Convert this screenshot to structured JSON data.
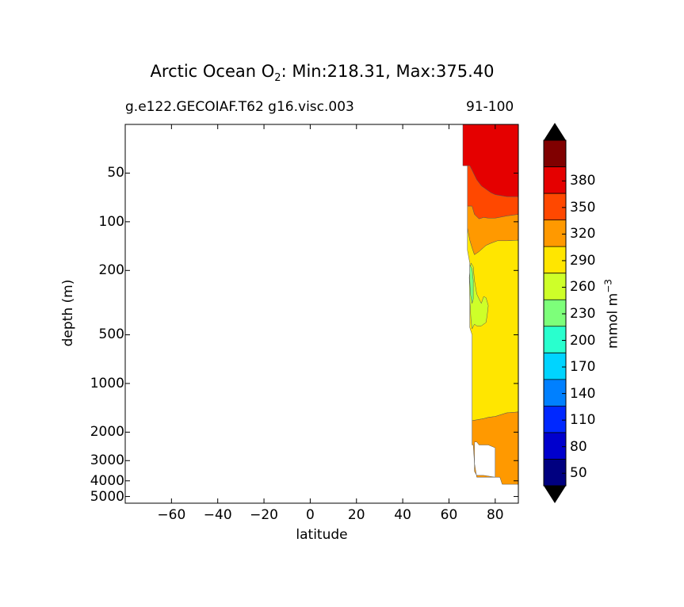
{
  "chart_data": {
    "type": "contour",
    "title": "Arctic Ocean O",
    "title_subscript": "2",
    "title_rest": ": Min:218.31, Max:375.40",
    "subtitle_left": "g.e122.GECOIAF.T62 g16.visc.003",
    "subtitle_right": "91-100",
    "xlabel": "latitude",
    "ylabel": "depth (m)",
    "colorbar_label": "mmol m",
    "colorbar_label_exp": "−3",
    "xlim": [
      -80,
      90
    ],
    "x_ticks": [
      -60,
      -40,
      -20,
      0,
      20,
      40,
      60,
      80
    ],
    "x_tick_labels": [
      "−60",
      "−40",
      "−20",
      "0",
      "20",
      "40",
      "60",
      "80"
    ],
    "y_scale": "log",
    "y_inverted": true,
    "ylim": [
      5500,
      25
    ],
    "y_ticks": [
      50,
      100,
      200,
      500,
      1000,
      2000,
      3000,
      4000,
      5000
    ],
    "y_tick_labels": [
      "50",
      "100",
      "200",
      "500",
      "1000",
      "2000",
      "3000",
      "4000",
      "5000"
    ],
    "min": 218.31,
    "max": 375.4,
    "levels": [
      35,
      50,
      65,
      80,
      95,
      110,
      125,
      140,
      155,
      170,
      185,
      200,
      215,
      230,
      245,
      260,
      275,
      290,
      305,
      320,
      335,
      350,
      365,
      380,
      395
    ],
    "colorbar_tick_labels": [
      "50",
      "80",
      "110",
      "140",
      "170",
      "200",
      "230",
      "260",
      "290",
      "320",
      "350",
      "380"
    ],
    "colorbar_colors": [
      "#000080",
      "#0000cd",
      "#0028ff",
      "#0080ff",
      "#00d4ff",
      "#29ffce",
      "#7dff7a",
      "#ceff29",
      "#ffe600",
      "#ff9900",
      "#ff4800",
      "#e50000",
      "#800000"
    ],
    "colorbar_extend": "both",
    "colorbar_over_color": "#000000",
    "colorbar_under_color": "#000000",
    "regions": [
      {
        "value_band": [
          350,
          380
        ],
        "color": "#e50000",
        "points": [
          [
            66,
            25
          ],
          [
            90,
            25
          ],
          [
            90,
            70
          ],
          [
            85,
            70
          ],
          [
            80,
            68
          ],
          [
            78,
            66
          ],
          [
            74,
            60
          ],
          [
            72,
            55
          ],
          [
            70,
            48
          ],
          [
            69,
            45
          ],
          [
            66,
            45
          ]
        ]
      },
      {
        "value_band": [
          320,
          350
        ],
        "color": "#ff4800",
        "points": [
          [
            69,
            45
          ],
          [
            70,
            48
          ],
          [
            72,
            55
          ],
          [
            74,
            60
          ],
          [
            78,
            66
          ],
          [
            80,
            68
          ],
          [
            85,
            70
          ],
          [
            90,
            70
          ],
          [
            90,
            90
          ],
          [
            85,
            92
          ],
          [
            80,
            95
          ],
          [
            77,
            95
          ],
          [
            75,
            94
          ],
          [
            73,
            96
          ],
          [
            71,
            90
          ],
          [
            70,
            80
          ],
          [
            68,
            80
          ],
          [
            68,
            45
          ]
        ]
      },
      {
        "value_band": [
          290,
          320
        ],
        "color": "#ff9900",
        "points": [
          [
            68,
            80
          ],
          [
            70,
            80
          ],
          [
            71,
            90
          ],
          [
            73,
            96
          ],
          [
            75,
            94
          ],
          [
            77,
            95
          ],
          [
            80,
            95
          ],
          [
            85,
            92
          ],
          [
            90,
            90
          ],
          [
            90,
            130
          ],
          [
            85,
            131
          ],
          [
            81,
            131
          ],
          [
            78,
            136
          ],
          [
            76,
            140
          ],
          [
            73,
            153
          ],
          [
            71,
            160
          ],
          [
            70,
            145
          ],
          [
            69,
            130
          ],
          [
            68,
            110
          ]
        ]
      },
      {
        "value_band": [
          260,
          290
        ],
        "color": "#ffe600",
        "points": [
          [
            68,
            110
          ],
          [
            69,
            130
          ],
          [
            70,
            145
          ],
          [
            71,
            160
          ],
          [
            73,
            153
          ],
          [
            76,
            140
          ],
          [
            78,
            136
          ],
          [
            81,
            131
          ],
          [
            85,
            131
          ],
          [
            90,
            130
          ],
          [
            90,
            1500
          ],
          [
            85,
            1520
          ],
          [
            80,
            1600
          ],
          [
            77,
            1620
          ],
          [
            75,
            1650
          ],
          [
            70,
            1700
          ],
          [
            70,
            500
          ],
          [
            69,
            450
          ],
          [
            69,
            180
          ],
          [
            68,
            150
          ]
        ]
      },
      {
        "value_band": [
          230,
          260
        ],
        "color": "#ceff29",
        "points": [
          [
            69.5,
            180
          ],
          [
            70.5,
            190
          ],
          [
            71,
            230
          ],
          [
            72,
            280
          ],
          [
            73,
            300
          ],
          [
            74,
            320
          ],
          [
            75,
            290
          ],
          [
            76,
            295
          ],
          [
            77,
            330
          ],
          [
            76.5,
            380
          ],
          [
            76,
            420
          ],
          [
            74,
            440
          ],
          [
            72,
            440
          ],
          [
            71,
            430
          ],
          [
            70,
            460
          ],
          [
            69.5,
            400
          ],
          [
            69,
            300
          ],
          [
            68.8,
            220
          ]
        ]
      },
      {
        "value_band": [
          200,
          230
        ],
        "color": "#7dff7a",
        "points": [
          [
            69,
            185
          ],
          [
            70,
            195
          ],
          [
            70.5,
            230
          ],
          [
            70.5,
            300
          ],
          [
            70,
            320
          ],
          [
            69.3,
            280
          ],
          [
            69,
            230
          ]
        ]
      },
      {
        "value_band": [
          290,
          320
        ],
        "color": "#ff9900",
        "points": [
          [
            70,
            1700
          ],
          [
            75,
            1650
          ],
          [
            77,
            1620
          ],
          [
            80,
            1600
          ],
          [
            85,
            1520
          ],
          [
            90,
            1500
          ],
          [
            90,
            4200
          ],
          [
            83,
            4200
          ],
          [
            82,
            3800
          ],
          [
            80,
            3800
          ],
          [
            80,
            2500
          ],
          [
            77,
            2400
          ],
          [
            73,
            2400
          ],
          [
            72,
            2300
          ],
          [
            71,
            2300
          ],
          [
            71,
            3500
          ],
          [
            72,
            3700
          ],
          [
            75,
            3700
          ],
          [
            80,
            3800
          ],
          [
            80,
            3800
          ],
          [
            73,
            3800
          ],
          [
            72,
            3800
          ],
          [
            71,
            3100
          ],
          [
            70.5,
            2400
          ],
          [
            70,
            2400
          ]
        ]
      }
    ]
  }
}
